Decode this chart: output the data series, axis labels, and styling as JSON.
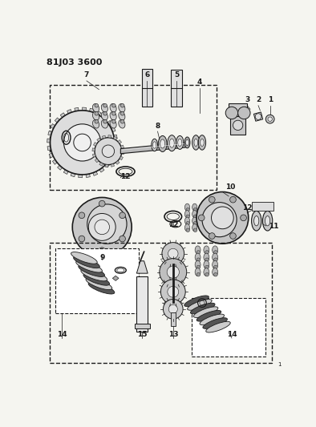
{
  "title": "81J03 3600",
  "bg_color": "#f5f5f0",
  "fig_width": 3.94,
  "fig_height": 5.33,
  "dpi": 100,
  "gray": "#1a1a1a",
  "lgray": "#555555",
  "mgray": "#888888"
}
